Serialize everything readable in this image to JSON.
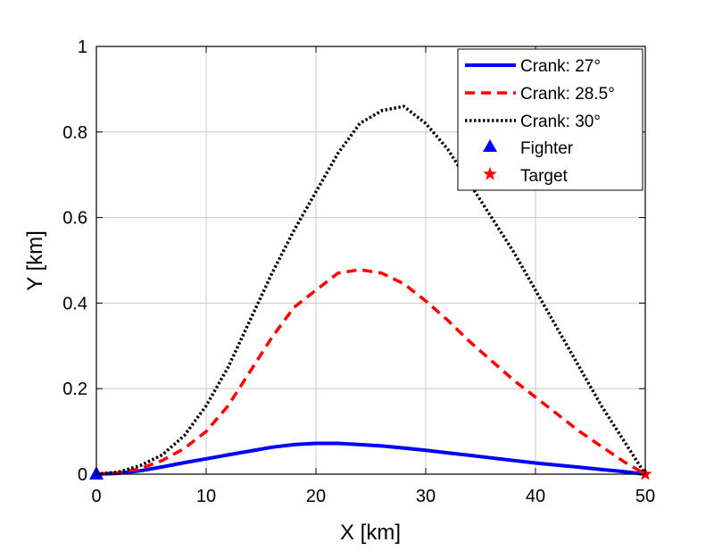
{
  "chart_data": {
    "type": "line",
    "title": "",
    "xlabel": "X [km]",
    "ylabel": "Y [km]",
    "xlim": [
      0,
      50
    ],
    "ylim": [
      0,
      1
    ],
    "xticks": [
      0,
      10,
      20,
      30,
      40,
      50
    ],
    "xtick_labels": [
      "0",
      "10",
      "20",
      "30",
      "40",
      "50"
    ],
    "yticks": [
      0,
      0.2,
      0.4,
      0.6,
      0.8,
      1
    ],
    "ytick_labels": [
      "0",
      "0.2",
      "0.4",
      "0.6",
      "0.8",
      "1"
    ],
    "grid": true,
    "legend_position": "top-right",
    "series": [
      {
        "name": "Crank: 27°",
        "color": "#0000ff",
        "style": "solid",
        "x": [
          0,
          2,
          4,
          6,
          8,
          10,
          12,
          14,
          16,
          18,
          20,
          22,
          24,
          26,
          28,
          30,
          32,
          34,
          36,
          38,
          40,
          42,
          44,
          46,
          48,
          50
        ],
        "y": [
          0,
          0.002,
          0.008,
          0.017,
          0.027,
          0.036,
          0.045,
          0.054,
          0.063,
          0.069,
          0.072,
          0.072,
          0.069,
          0.066,
          0.061,
          0.056,
          0.05,
          0.044,
          0.038,
          0.032,
          0.026,
          0.021,
          0.016,
          0.011,
          0.006,
          0
        ]
      },
      {
        "name": "Crank: 28.5°",
        "color": "#ff0000",
        "style": "dashed",
        "x": [
          0,
          2,
          4,
          6,
          8,
          10,
          12,
          14,
          16,
          18,
          20,
          22,
          24,
          26,
          28,
          30,
          32,
          34,
          36,
          38,
          40,
          42,
          44,
          46,
          48,
          50
        ],
        "y": [
          0,
          0.003,
          0.013,
          0.032,
          0.06,
          0.1,
          0.16,
          0.24,
          0.32,
          0.39,
          0.43,
          0.47,
          0.478,
          0.47,
          0.445,
          0.405,
          0.36,
          0.31,
          0.265,
          0.22,
          0.18,
          0.14,
          0.1,
          0.065,
          0.03,
          0
        ]
      },
      {
        "name": "Crank: 30°",
        "color": "#000000",
        "style": "dotted",
        "x": [
          0,
          2,
          4,
          6,
          8,
          10,
          12,
          14,
          16,
          18,
          20,
          22,
          24,
          26,
          28,
          30,
          32,
          34,
          36,
          38,
          40,
          42,
          44,
          46,
          48,
          50
        ],
        "y": [
          0,
          0.005,
          0.02,
          0.045,
          0.09,
          0.16,
          0.25,
          0.36,
          0.47,
          0.57,
          0.66,
          0.75,
          0.82,
          0.85,
          0.86,
          0.82,
          0.76,
          0.68,
          0.6,
          0.52,
          0.43,
          0.34,
          0.25,
          0.16,
          0.08,
          0
        ]
      }
    ],
    "markers": [
      {
        "name": "Fighter",
        "shape": "triangle",
        "color": "#0000ff",
        "x": 0,
        "y": 0
      },
      {
        "name": "Target",
        "shape": "star",
        "color": "#ff0000",
        "x": 50,
        "y": 0
      }
    ]
  }
}
